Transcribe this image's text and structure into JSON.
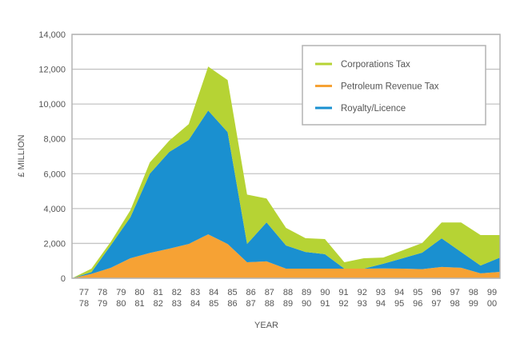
{
  "chart_data": {
    "type": "area",
    "stacked": true,
    "title": "",
    "xlabel": "YEAR",
    "ylabel": "£ MILLION",
    "ylim": [
      0,
      14000
    ],
    "yticks": [
      0,
      2000,
      4000,
      6000,
      8000,
      10000,
      12000,
      14000
    ],
    "ytick_labels": [
      "0",
      "2,000",
      "4,000",
      "6,000",
      "8,000",
      "10,000",
      "12,000",
      "14,000"
    ],
    "grid": true,
    "legend_position": "top-right",
    "categories": [
      [
        "77",
        "78"
      ],
      [
        "78",
        "79"
      ],
      [
        "79",
        "80"
      ],
      [
        "80",
        "81"
      ],
      [
        "81",
        "82"
      ],
      [
        "82",
        "83"
      ],
      [
        "83",
        "84"
      ],
      [
        "84",
        "85"
      ],
      [
        "85",
        "86"
      ],
      [
        "86",
        "87"
      ],
      [
        "87",
        "88"
      ],
      [
        "88",
        "89"
      ],
      [
        "89",
        "90"
      ],
      [
        "90",
        "91"
      ],
      [
        "91",
        "92"
      ],
      [
        "92",
        "93"
      ],
      [
        "93",
        "94"
      ],
      [
        "94",
        "95"
      ],
      [
        "95",
        "96"
      ],
      [
        "96",
        "97"
      ],
      [
        "97",
        "98"
      ],
      [
        "98",
        "99"
      ],
      [
        "99",
        "00"
      ]
    ],
    "series": [
      {
        "name": "Petroleum Revenue Tax",
        "color": "#f6a234",
        "values": [
          0,
          250,
          600,
          1150,
          1450,
          1700,
          1970,
          2520,
          1970,
          920,
          970,
          550,
          550,
          550,
          550,
          550,
          560,
          550,
          520,
          650,
          600,
          280,
          370
        ]
      },
      {
        "name": "Royalty/Licence",
        "color": "#1a90d0",
        "values": [
          0,
          100,
          1300,
          2350,
          4550,
          5550,
          5970,
          7110,
          6420,
          1050,
          2240,
          1330,
          960,
          830,
          0,
          0,
          270,
          600,
          950,
          1640,
          910,
          450,
          820
        ]
      },
      {
        "name": "Corporations Tax",
        "color": "#b6d334",
        "values": [
          0,
          200,
          200,
          400,
          650,
          650,
          910,
          2520,
          2990,
          2830,
          1370,
          1010,
          790,
          870,
          370,
          600,
          360,
          450,
          550,
          910,
          1690,
          1750,
          1290
        ]
      }
    ],
    "legend_order": [
      "Corporations Tax",
      "Petroleum Revenue Tax",
      "Royalty/Licence"
    ]
  }
}
